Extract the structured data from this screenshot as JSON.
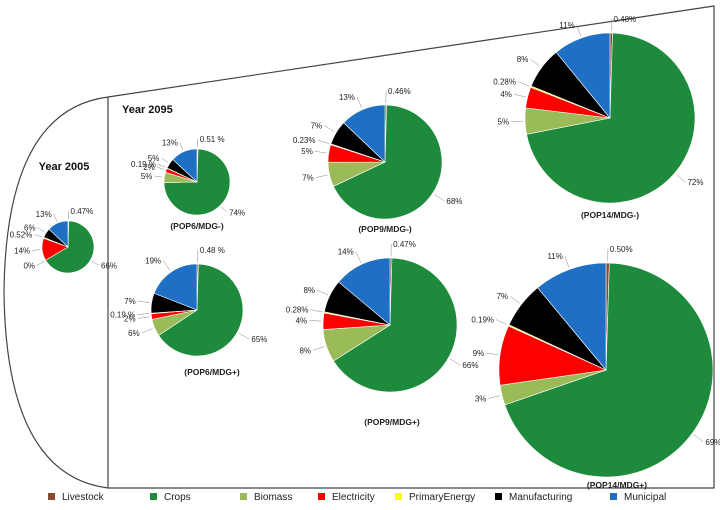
{
  "colors": {
    "Livestock": "#8b4a2b",
    "Crops": "#1e8a3c",
    "Biomass": "#9bbb59",
    "Electricity": "#ff0000",
    "PrimaryEnergy": "#ffff00",
    "Manufacturing": "#000000",
    "Municipal": "#1f6fc5"
  },
  "legend": [
    "Livestock",
    "Crops",
    "Biomass",
    "Electricity",
    "PrimaryEnergy",
    "Manufacturing",
    "Municipal"
  ],
  "headings": {
    "year_2005": "Year 2005",
    "year_2095": "Year 2095"
  },
  "chart_data": [
    {
      "type": "pie",
      "label": "",
      "slices": [
        {
          "sector": "Livestock",
          "value": 0.47,
          "label": "0.47%"
        },
        {
          "sector": "Crops",
          "value": 66,
          "label": "66%"
        },
        {
          "sector": "Biomass",
          "value": 0,
          "label": "0%"
        },
        {
          "sector": "Electricity",
          "value": 14,
          "label": "14%"
        },
        {
          "sector": "PrimaryEnergy",
          "value": 0.52,
          "label": "0.52%"
        },
        {
          "sector": "Manufacturing",
          "value": 6,
          "label": "6%"
        },
        {
          "sector": "Municipal",
          "value": 13,
          "label": "13%"
        }
      ]
    },
    {
      "type": "pie",
      "label": "(POP6/MDG-)",
      "slices": [
        {
          "sector": "Livestock",
          "value": 0.51,
          "label": "0.51 %"
        },
        {
          "sector": "Crops",
          "value": 74,
          "label": "74%"
        },
        {
          "sector": "Biomass",
          "value": 5,
          "label": "5%"
        },
        {
          "sector": "Electricity",
          "value": 2,
          "label": "2%"
        },
        {
          "sector": "PrimaryEnergy",
          "value": 0.19,
          "label": "0.19 %"
        },
        {
          "sector": "Manufacturing",
          "value": 5,
          "label": "5%"
        },
        {
          "sector": "Municipal",
          "value": 13,
          "label": "13%"
        }
      ]
    },
    {
      "type": "pie",
      "label": "(POP9/MDG-)",
      "slices": [
        {
          "sector": "Livestock",
          "value": 0.46,
          "label": "0.46%"
        },
        {
          "sector": "Crops",
          "value": 68,
          "label": "68%"
        },
        {
          "sector": "Biomass",
          "value": 7,
          "label": "7%"
        },
        {
          "sector": "Electricity",
          "value": 5,
          "label": "5%"
        },
        {
          "sector": "PrimaryEnergy",
          "value": 0.23,
          "label": "0.23%"
        },
        {
          "sector": "Manufacturing",
          "value": 7,
          "label": "7%"
        },
        {
          "sector": "Municipal",
          "value": 13,
          "label": "13%"
        }
      ]
    },
    {
      "type": "pie",
      "label": "(POP14/MDG-)",
      "slices": [
        {
          "sector": "Livestock",
          "value": 0.48,
          "label": "0.48%"
        },
        {
          "sector": "Crops",
          "value": 72,
          "label": "72%"
        },
        {
          "sector": "Biomass",
          "value": 5,
          "label": "5%"
        },
        {
          "sector": "Electricity",
          "value": 4,
          "label": "4%"
        },
        {
          "sector": "PrimaryEnergy",
          "value": 0.28,
          "label": "0.28%"
        },
        {
          "sector": "Manufacturing",
          "value": 8,
          "label": "8%"
        },
        {
          "sector": "Municipal",
          "value": 11,
          "label": "11%"
        }
      ]
    },
    {
      "type": "pie",
      "label": "(POP6/MDG+)",
      "slices": [
        {
          "sector": "Livestock",
          "value": 0.48,
          "label": "0.48 %"
        },
        {
          "sector": "Crops",
          "value": 65,
          "label": "65%"
        },
        {
          "sector": "Biomass",
          "value": 6,
          "label": "6%"
        },
        {
          "sector": "Electricity",
          "value": 2,
          "label": "2%"
        },
        {
          "sector": "PrimaryEnergy",
          "value": 0.19,
          "label": "0.19 %"
        },
        {
          "sector": "Manufacturing",
          "value": 7,
          "label": "7%"
        },
        {
          "sector": "Municipal",
          "value": 19,
          "label": "19%"
        }
      ]
    },
    {
      "type": "pie",
      "label": "(POP9/MDG+)",
      "slices": [
        {
          "sector": "Livestock",
          "value": 0.47,
          "label": "0.47%"
        },
        {
          "sector": "Crops",
          "value": 66,
          "label": "66%"
        },
        {
          "sector": "Biomass",
          "value": 8,
          "label": "8%"
        },
        {
          "sector": "Electricity",
          "value": 4,
          "label": "4%"
        },
        {
          "sector": "PrimaryEnergy",
          "value": 0.28,
          "label": "0.28%"
        },
        {
          "sector": "Manufacturing",
          "value": 8,
          "label": "8%"
        },
        {
          "sector": "Municipal",
          "value": 14,
          "label": "14%"
        }
      ]
    },
    {
      "type": "pie",
      "label": "(POP14/MDG+)",
      "slices": [
        {
          "sector": "Livestock",
          "value": 0.5,
          "label": "0.50%"
        },
        {
          "sector": "Crops",
          "value": 69,
          "label": "69%"
        },
        {
          "sector": "Biomass",
          "value": 3,
          "label": "3%"
        },
        {
          "sector": "Electricity",
          "value": 9,
          "label": "9%"
        },
        {
          "sector": "PrimaryEnergy",
          "value": 0.19,
          "label": "0.19%"
        },
        {
          "sector": "Manufacturing",
          "value": 7,
          "label": "7%"
        },
        {
          "sector": "Municipal",
          "value": 11,
          "label": "11%"
        }
      ]
    }
  ]
}
